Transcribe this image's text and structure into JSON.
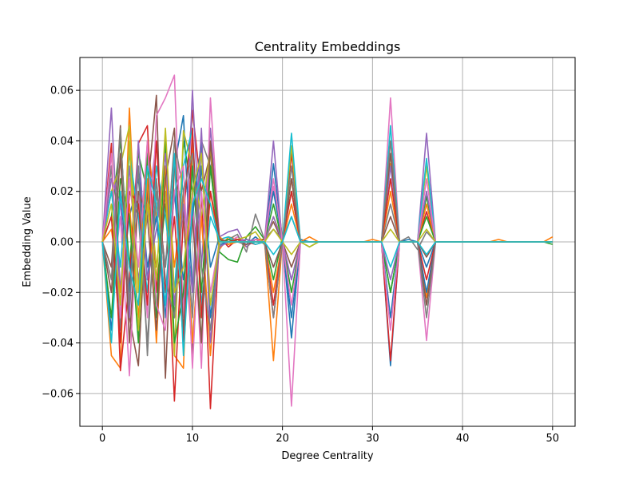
{
  "chart_data": {
    "type": "line",
    "title": "Centrality Embeddings",
    "xlabel": "Degree Centrality",
    "ylabel": "Embedding Value",
    "xlim": [
      -2.5,
      52.5
    ],
    "ylim": [
      -0.073,
      0.073
    ],
    "xticks": [
      0,
      10,
      20,
      30,
      40,
      50
    ],
    "xtick_labels": [
      "0",
      "10",
      "20",
      "30",
      "40",
      "50"
    ],
    "yticks": [
      -0.06,
      -0.04,
      -0.02,
      0.0,
      0.02,
      0.04,
      0.06
    ],
    "ytick_labels": [
      "−0.06",
      "−0.04",
      "−0.02",
      "0.00",
      "0.02",
      "0.04",
      "0.06"
    ],
    "grid": true,
    "legend": "none",
    "x": [
      0,
      1,
      2,
      3,
      4,
      5,
      6,
      7,
      8,
      9,
      10,
      11,
      12,
      13,
      14,
      15,
      16,
      17,
      18,
      19,
      20,
      21,
      22,
      23,
      24,
      25,
      26,
      27,
      28,
      29,
      30,
      31,
      32,
      33,
      34,
      35,
      36,
      37,
      38,
      39,
      40,
      41,
      42,
      43,
      44,
      45,
      46,
      47,
      48,
      49,
      50
    ],
    "series_colors": [
      "#1f77b4",
      "#ff7f0e",
      "#2ca02c",
      "#d62728",
      "#9467bd",
      "#8c564b",
      "#e377c2",
      "#7f7f7f",
      "#bcbd22",
      "#17becf"
    ],
    "series": [
      {
        "values": [
          0,
          0.03,
          -0.02,
          0.01,
          0.025,
          -0.015,
          0.02,
          -0.01,
          0.03,
          0.05,
          -0.02,
          0.03,
          -0.01,
          0.002,
          -0.001,
          0.001,
          -0.001,
          0.002,
          -0.001,
          0.031,
          0.001,
          -0.038,
          0.001,
          0,
          0,
          0,
          0,
          0,
          0,
          0,
          0,
          0,
          -0.049,
          0,
          0.001,
          0,
          -0.01,
          0,
          0,
          0,
          0,
          0,
          0,
          0,
          0,
          0,
          0,
          0,
          0,
          0,
          0
        ]
      },
      {
        "values": [
          0,
          -0.045,
          -0.05,
          0.053,
          -0.02,
          0.04,
          0.01,
          0.03,
          -0.045,
          -0.05,
          0.04,
          -0.03,
          0.02,
          -0.003,
          0.002,
          0.001,
          -0.002,
          0.001,
          0.001,
          -0.047,
          0.001,
          0.025,
          0,
          0.002,
          0,
          0,
          0,
          0,
          0,
          0,
          0.001,
          0,
          0.031,
          0,
          0,
          0,
          -0.022,
          0,
          0,
          0,
          0,
          0,
          0,
          0,
          0.001,
          0,
          0,
          0,
          0,
          0,
          0.002
        ]
      },
      {
        "values": [
          0,
          0.01,
          0.04,
          -0.01,
          0.035,
          0.02,
          -0.02,
          0.015,
          -0.03,
          0.04,
          0.02,
          -0.04,
          0.03,
          -0.004,
          -0.007,
          -0.008,
          0.002,
          0.006,
          0.001,
          -0.015,
          0.002,
          0.02,
          0,
          -0.002,
          0,
          0,
          0,
          0,
          0,
          0,
          0,
          0,
          -0.02,
          0,
          0,
          0,
          0.018,
          0,
          0,
          0,
          0,
          0,
          0,
          0,
          0,
          0,
          0,
          0,
          0,
          0,
          -0.001
        ]
      },
      {
        "values": [
          0,
          0.039,
          -0.051,
          -0.015,
          0.039,
          0.046,
          -0.02,
          0.02,
          -0.063,
          0.01,
          0.052,
          0.02,
          -0.066,
          0.002,
          -0.002,
          0.001,
          0,
          -0.001,
          0,
          -0.03,
          0,
          0.035,
          0,
          0,
          0,
          0,
          0,
          0,
          0,
          0,
          0,
          0,
          -0.047,
          0,
          0,
          0,
          0.012,
          0,
          0,
          0,
          0,
          0,
          0,
          0,
          0,
          0,
          0,
          0,
          0,
          0,
          0
        ]
      },
      {
        "values": [
          0,
          0.053,
          -0.02,
          0.03,
          -0.015,
          0.01,
          0.04,
          -0.02,
          0.02,
          -0.025,
          0.06,
          -0.01,
          0.045,
          0.002,
          0.004,
          0.005,
          -0.002,
          0.001,
          0,
          0.04,
          -0.001,
          -0.015,
          0,
          0,
          0,
          0,
          0,
          0,
          0,
          0,
          0,
          0,
          0.03,
          0,
          0,
          0,
          0.043,
          0,
          0,
          0,
          0,
          0,
          0,
          0,
          0,
          0,
          0,
          0,
          0,
          0,
          0
        ]
      },
      {
        "values": [
          0,
          -0.01,
          0.046,
          -0.03,
          -0.049,
          0.02,
          0.058,
          -0.054,
          0.03,
          0.01,
          -0.045,
          0.02,
          0.035,
          -0.002,
          0.001,
          0,
          -0.001,
          0,
          0.001,
          0.008,
          0,
          -0.01,
          0,
          0,
          0,
          0,
          0,
          0,
          0,
          0,
          0,
          0,
          0.01,
          0,
          0,
          0,
          -0.006,
          0,
          0,
          0,
          0,
          0,
          0,
          0,
          0,
          0,
          0,
          0,
          0,
          0,
          0
        ]
      },
      {
        "values": [
          0,
          -0.02,
          0.01,
          -0.053,
          0.02,
          -0.03,
          0.05,
          0.057,
          0.066,
          -0.03,
          0.02,
          -0.05,
          0.057,
          0.001,
          0,
          0.002,
          0,
          0.001,
          0,
          0.022,
          0,
          -0.065,
          0,
          0,
          0,
          0,
          0,
          0,
          0,
          0,
          0,
          0,
          0.057,
          0,
          0,
          0,
          -0.039,
          0,
          0,
          0,
          0,
          0,
          0,
          0,
          0,
          0,
          0,
          0,
          0,
          0,
          0
        ]
      },
      {
        "values": [
          0,
          0.03,
          -0.035,
          0.02,
          0.01,
          -0.04,
          0.02,
          -0.01,
          0.04,
          0.02,
          -0.03,
          0.04,
          0.03,
          -0.002,
          0.001,
          0.003,
          -0.004,
          0.011,
          0.001,
          0.005,
          0.001,
          0.01,
          0,
          0,
          0,
          0,
          0,
          0,
          0,
          0,
          0,
          0,
          0.015,
          0,
          0.002,
          -0.003,
          0.004,
          0,
          0,
          0,
          0,
          0,
          0,
          0,
          0,
          0,
          0,
          0,
          0,
          0,
          0
        ]
      },
      {
        "values": [
          0,
          0.02,
          0.03,
          0.046,
          -0.02,
          0.03,
          -0.01,
          0.02,
          -0.045,
          0.044,
          0.03,
          0.01,
          0.037,
          0.001,
          -0.001,
          0.001,
          0.002,
          0.004,
          -0.001,
          0.01,
          0.001,
          0.038,
          0,
          -0.002,
          0,
          0,
          0,
          0,
          0,
          0,
          0,
          0,
          0.035,
          0,
          0,
          0,
          0.03,
          0,
          0,
          0,
          0,
          0,
          0,
          0,
          0,
          0,
          0,
          0,
          0,
          0,
          0
        ]
      },
      {
        "values": [
          0,
          0.02,
          -0.01,
          0.035,
          0.01,
          -0.02,
          0.03,
          0.01,
          -0.02,
          0.03,
          0.045,
          -0.025,
          0.01,
          0.001,
          0.002,
          0,
          0.001,
          -0.001,
          0,
          -0.01,
          0,
          0.043,
          0,
          0,
          0,
          0,
          0,
          0,
          0,
          0,
          0,
          0,
          0.046,
          0,
          0,
          0,
          0.033,
          0,
          0,
          0,
          0,
          0,
          0,
          0,
          0,
          0,
          0,
          0,
          0,
          0,
          0
        ]
      },
      {
        "values": [
          0,
          -0.035,
          0.02,
          -0.02,
          0.03,
          -0.01,
          0.01,
          -0.03,
          0.02,
          -0.015,
          0.01,
          0.04,
          -0.03,
          -0.001,
          0,
          0.001,
          0,
          0,
          0,
          0.02,
          0,
          -0.03,
          0,
          0,
          0,
          0,
          0,
          0,
          0,
          0,
          0,
          0,
          -0.03,
          0,
          0,
          0,
          -0.02,
          0,
          0,
          0,
          0,
          0,
          0,
          0,
          0,
          0,
          0,
          0,
          0,
          0,
          0
        ]
      },
      {
        "values": [
          0,
          0.005,
          -0.02,
          0.015,
          -0.03,
          0.025,
          -0.04,
          0.03,
          -0.01,
          0.02,
          -0.04,
          0.01,
          -0.045,
          0.002,
          -0.001,
          0,
          0,
          0,
          0,
          -0.02,
          0,
          0.015,
          0,
          0,
          0,
          0,
          0,
          0,
          0,
          0,
          0,
          0,
          0.02,
          0,
          0,
          0,
          0.015,
          0,
          0,
          0,
          0,
          0,
          0,
          0,
          0,
          0,
          0,
          0,
          0,
          0,
          0
        ]
      },
      {
        "values": [
          0,
          -0.03,
          0.025,
          0.01,
          -0.04,
          0.035,
          -0.03,
          0.04,
          -0.04,
          -0.02,
          0.03,
          -0.02,
          0.03,
          0,
          0.001,
          0,
          0.001,
          0,
          0,
          0.015,
          0,
          -0.02,
          0,
          0,
          0,
          0,
          0,
          0,
          0,
          0,
          0,
          0,
          -0.02,
          0,
          0,
          0,
          0.01,
          0,
          0,
          0,
          0,
          0,
          0,
          0,
          0,
          0,
          0,
          0,
          0,
          0,
          0
        ]
      },
      {
        "values": [
          0,
          0.01,
          -0.04,
          0.02,
          0.015,
          -0.025,
          0.04,
          -0.02,
          0.01,
          -0.04,
          0.045,
          -0.03,
          0.02,
          0.001,
          0,
          0.001,
          0,
          0,
          0,
          -0.025,
          0,
          0.02,
          0,
          0,
          0,
          0,
          0,
          0,
          0,
          0,
          0,
          0,
          0.025,
          0,
          0,
          0,
          -0.015,
          0,
          0,
          0,
          0,
          0,
          0,
          0,
          0,
          0,
          0,
          0,
          0,
          0,
          0
        ]
      },
      {
        "values": [
          0,
          0.025,
          0.015,
          -0.03,
          0.04,
          -0.015,
          0.005,
          0.035,
          -0.025,
          0.015,
          -0.02,
          0.045,
          -0.04,
          -0.002,
          0,
          0,
          0.001,
          0,
          0,
          0.01,
          0,
          -0.015,
          0,
          0,
          0,
          0,
          0,
          0,
          0,
          0,
          0,
          0,
          -0.015,
          0,
          0,
          0,
          0.02,
          0,
          0,
          0,
          0,
          0,
          0,
          0,
          0,
          0,
          0,
          0,
          0,
          0,
          0
        ]
      },
      {
        "values": [
          0,
          -0.02,
          0.035,
          -0.04,
          0.02,
          0.01,
          -0.035,
          0.025,
          0.045,
          -0.035,
          0.01,
          -0.04,
          0.04,
          0.001,
          0,
          0,
          0,
          0,
          0,
          -0.01,
          0,
          0.025,
          0,
          0,
          0,
          0,
          0,
          0,
          0,
          0,
          0,
          0,
          0.035,
          0,
          0,
          0,
          -0.025,
          0,
          0,
          0,
          0,
          0,
          0,
          0,
          0,
          0,
          0,
          0,
          0,
          0,
          0
        ]
      },
      {
        "values": [
          0,
          0.035,
          -0.03,
          0.025,
          -0.01,
          0.04,
          -0.025,
          -0.035,
          0.02,
          0.03,
          -0.05,
          0.02,
          -0.02,
          0,
          0,
          0,
          0,
          0,
          0,
          0.025,
          0,
          -0.025,
          0,
          0,
          0,
          0,
          0,
          0,
          0,
          0,
          0,
          0,
          -0.035,
          0,
          0,
          0,
          0.025,
          0,
          0,
          0,
          0,
          0,
          0,
          0,
          0,
          0,
          0,
          0,
          0,
          0,
          0
        ]
      },
      {
        "values": [
          0,
          -0.015,
          0.045,
          -0.025,
          0.03,
          -0.045,
          0.025,
          -0.015,
          -0.03,
          0.02,
          0.035,
          -0.01,
          -0.035,
          0,
          0,
          0,
          0,
          0,
          0,
          -0.03,
          0,
          0.03,
          0,
          0,
          0,
          0,
          0,
          0,
          0,
          0,
          0,
          0,
          0.04,
          0,
          0,
          0,
          -0.03,
          0,
          0,
          0,
          0,
          0,
          0,
          0,
          0,
          0,
          0,
          0,
          0,
          0,
          0
        ]
      },
      {
        "values": [
          0,
          0.015,
          -0.025,
          0.04,
          -0.035,
          0.015,
          -0.015,
          0.045,
          -0.02,
          -0.01,
          0.02,
          0.035,
          -0.025,
          0,
          0,
          0,
          0,
          0,
          0,
          0.005,
          0,
          -0.005,
          0,
          0,
          0,
          0,
          0,
          0,
          0,
          0,
          0,
          0,
          0.005,
          0,
          0,
          0,
          0.005,
          0,
          0,
          0,
          0,
          0,
          0,
          0,
          0,
          0,
          0,
          0,
          0,
          0,
          0
        ]
      },
      {
        "values": [
          0,
          -0.04,
          0.02,
          -0.01,
          -0.025,
          0.03,
          0.015,
          -0.025,
          0.035,
          -0.045,
          0.015,
          0.025,
          0.015,
          0,
          0,
          0,
          0,
          0,
          0,
          -0.005,
          0,
          0.01,
          0,
          0,
          0,
          0,
          0,
          0,
          0,
          0,
          0,
          0,
          -0.01,
          0,
          0,
          0,
          -0.005,
          0,
          0,
          0,
          0,
          0,
          0,
          0,
          0,
          0,
          0,
          0,
          0,
          0,
          0
        ]
      }
    ]
  }
}
